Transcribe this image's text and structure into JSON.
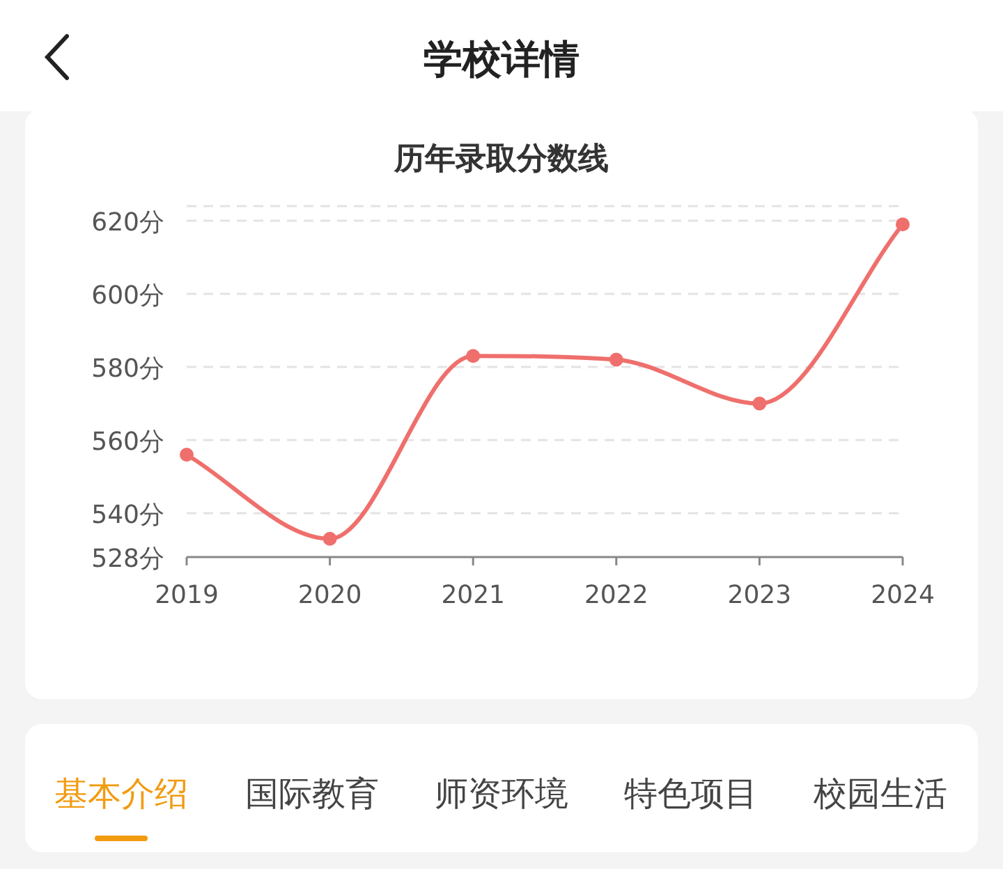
{
  "chart_data": {
    "type": "line",
    "title": "历年录取分数线",
    "categories": [
      "2019",
      "2020",
      "2021",
      "2022",
      "2023",
      "2024"
    ],
    "series": [
      {
        "color": "#ef6f6c",
        "values": [
          556,
          533,
          583,
          582,
          570,
          619
        ]
      }
    ],
    "ylim": [
      528,
      624
    ],
    "yticks": [
      {
        "value": 528,
        "label": "528分"
      },
      {
        "value": 540,
        "label": "540分"
      },
      {
        "value": 560,
        "label": "560分"
      },
      {
        "value": 580,
        "label": "580分"
      },
      {
        "value": 600,
        "label": "600分"
      },
      {
        "value": 620,
        "label": "620分"
      }
    ],
    "grid": "y",
    "marker": "circle",
    "line_style": "solid",
    "annotations": [
      "学校详情",
      "基本介绍",
      "国际教育",
      "师资环境",
      "特色项目",
      "校园生活"
    ]
  }
}
